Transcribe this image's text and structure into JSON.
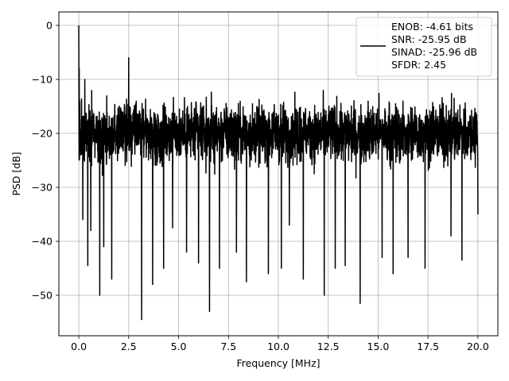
{
  "chart_data": {
    "type": "line",
    "title": "",
    "xlabel": "Frequency [MHz]",
    "ylabel": "PSD [dB]",
    "xlim": [
      -1.0,
      21.0
    ],
    "ylim": [
      -57.5,
      2.5
    ],
    "xticks": [
      0.0,
      2.5,
      5.0,
      7.5,
      10.0,
      12.5,
      15.0,
      17.5,
      20.0
    ],
    "xtick_labels": [
      "0.0",
      "2.5",
      "5.0",
      "7.5",
      "10.0",
      "12.5",
      "15.0",
      "17.5",
      "20.0"
    ],
    "yticks": [
      0,
      -10,
      -20,
      -30,
      -40,
      -50
    ],
    "ytick_labels": [
      "0",
      "−10",
      "−20",
      "−30",
      "−40",
      "−50"
    ],
    "grid": true,
    "legend_position": "top-right",
    "line_color": "#000000",
    "series": [
      {
        "name": "ENOB: -4.61 bits\nSNR: -25.95 dB\nSINAD: -25.96 dB\nSFDR: 2.45",
        "description": "noise-like PSD spectrum across 0-20 MHz; envelope peaks near -8 dB, troughs down to about -54 dB, dense band roughly -12 to -35 dB",
        "x": [
          0.0,
          0.02,
          0.05,
          0.1,
          0.2,
          0.3,
          0.45,
          0.6,
          1.05,
          1.25,
          1.65,
          2.5,
          3.15,
          3.7,
          4.25,
          4.7,
          5.4,
          6.0,
          6.55,
          7.05,
          7.9,
          8.4,
          9.5,
          10.15,
          10.55,
          11.25,
          12.3,
          12.85,
          13.35,
          14.1,
          15.2,
          15.75,
          16.5,
          17.35,
          18.65,
          19.2,
          20.0
        ],
        "y": [
          0.0,
          -8.0,
          -14.0,
          -24.0,
          -36.0,
          -10.0,
          -44.5,
          -38.0,
          -50.0,
          -41.0,
          -47.0,
          -6.0,
          -54.5,
          -48.0,
          -45.0,
          -37.5,
          -42.0,
          -44.0,
          -53.0,
          -45.0,
          -42.0,
          -47.5,
          -46.0,
          -45.0,
          -37.0,
          -47.0,
          -50.0,
          -45.0,
          -44.5,
          -51.5,
          -43.0,
          -46.0,
          -43.0,
          -45.0,
          -39.0,
          -43.5,
          -35.0
        ]
      }
    ]
  },
  "legend": {
    "lines": [
      "ENOB: -4.61 bits",
      "SNR: -25.95 dB",
      "SINAD: -25.96 dB",
      "SFDR: 2.45"
    ]
  }
}
